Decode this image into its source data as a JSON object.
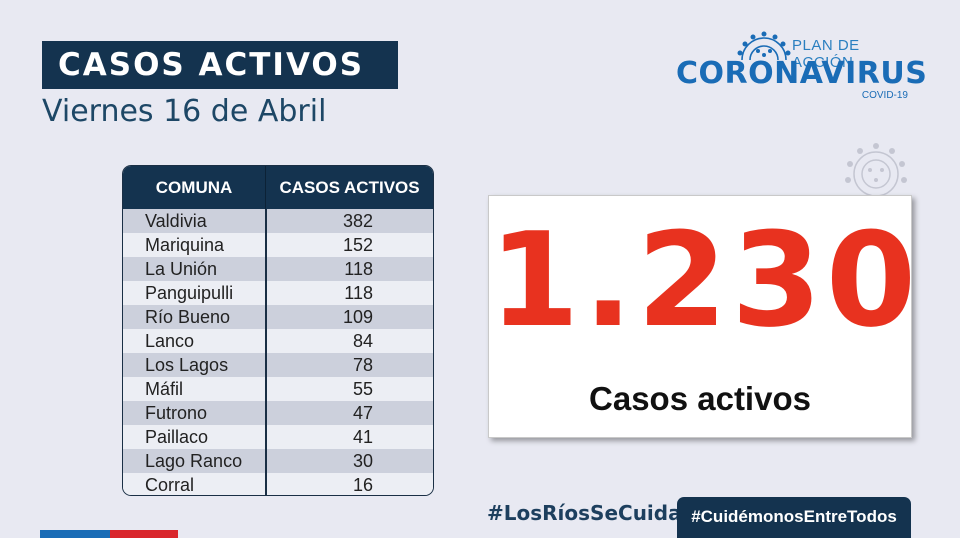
{
  "header": {
    "title": "CASOS ACTIVOS",
    "date": "Viernes 16 de Abril"
  },
  "logo": {
    "line1": "PLAN DE ACCIÓN",
    "line2": "CORONAVIRUS",
    "line3": "COVID-19",
    "icon": "virus-icon"
  },
  "table": {
    "headers": [
      "COMUNA",
      "CASOS ACTIVOS"
    ],
    "rows": [
      {
        "comuna": "Valdivia",
        "casos": "382"
      },
      {
        "comuna": "Mariquina",
        "casos": "152"
      },
      {
        "comuna": "La Unión",
        "casos": "118"
      },
      {
        "comuna": "Panguipulli",
        "casos": "118"
      },
      {
        "comuna": "Río Bueno",
        "casos": "109"
      },
      {
        "comuna": "Lanco",
        "casos": "84"
      },
      {
        "comuna": "Los Lagos",
        "casos": "78"
      },
      {
        "comuna": "Máfil",
        "casos": "55"
      },
      {
        "comuna": "Futrono",
        "casos": "47"
      },
      {
        "comuna": "Paillaco",
        "casos": "41"
      },
      {
        "comuna": "Lago Ranco",
        "casos": "30"
      },
      {
        "comuna": "Corral",
        "casos": "16"
      }
    ]
  },
  "total": {
    "value": "1.230",
    "label": "Casos activos"
  },
  "footer": {
    "hashtag1": "#LosRíosSeCuida",
    "hashtag2": "#CuidémonosEntreTodos"
  },
  "colors": {
    "navy": "#14334f",
    "accent_red": "#e8321f",
    "brand_blue": "#1a6cb6",
    "background": "#e8e9f2"
  }
}
